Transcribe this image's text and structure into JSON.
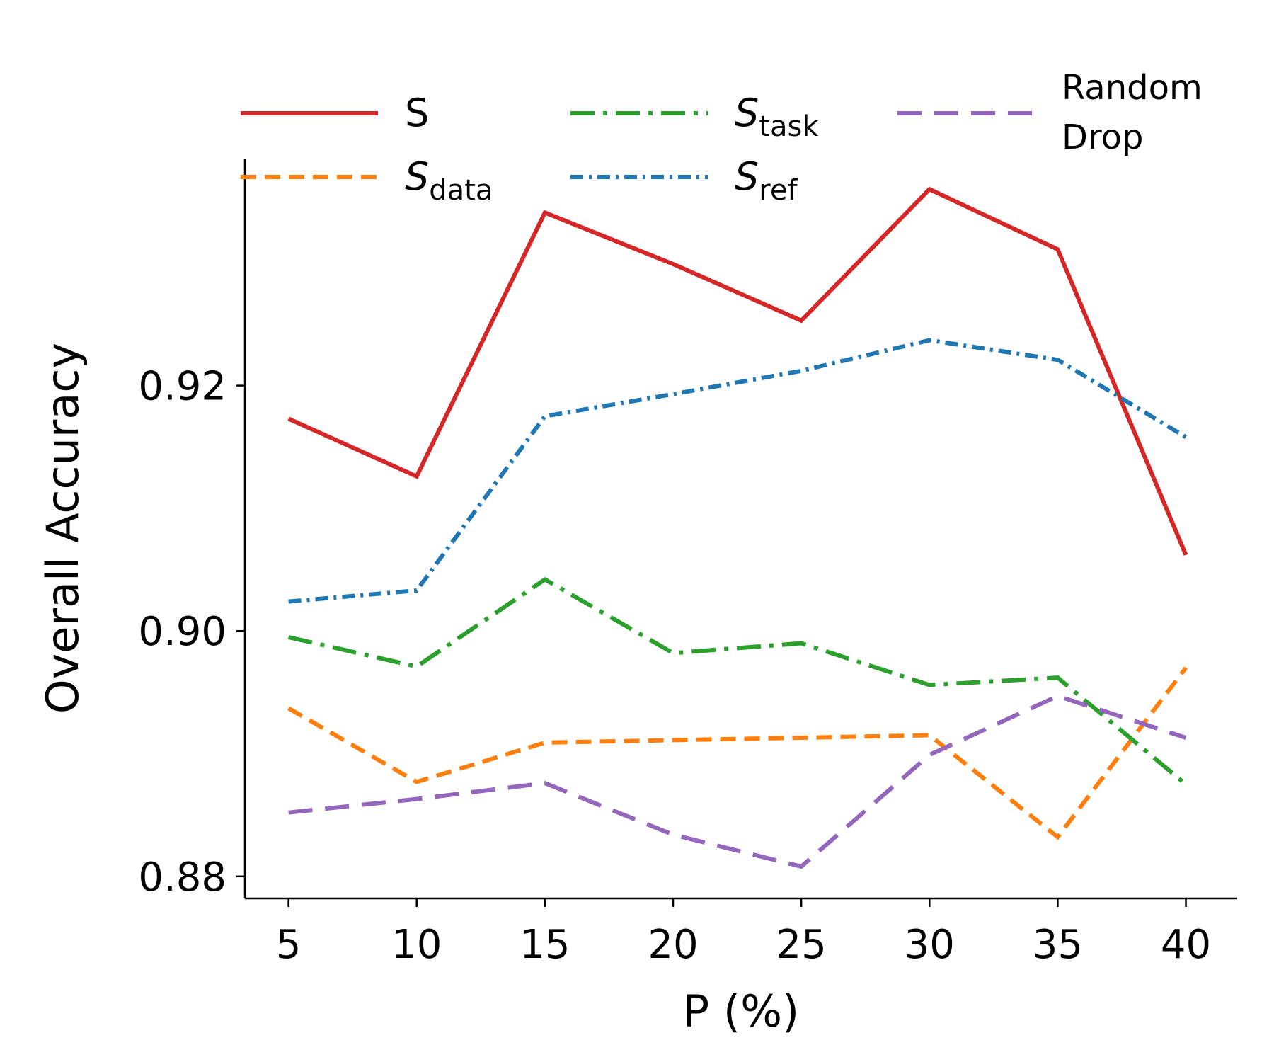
{
  "chart_data": {
    "type": "line",
    "xlabel": "P (%)",
    "ylabel": "Overall Accuracy",
    "x": [
      5,
      10,
      15,
      20,
      25,
      30,
      35,
      40
    ],
    "xticks": [
      "5",
      "10",
      "15",
      "20",
      "25",
      "30",
      "35",
      "40"
    ],
    "yticks": [
      "0.88",
      "0.90",
      "0.92"
    ],
    "ytick_values": [
      0.88,
      0.9,
      0.92
    ],
    "xlim": [
      3.3,
      42.0
    ],
    "ylim": [
      0.8782,
      0.9385
    ],
    "grid": false,
    "legend_position": "top",
    "series": [
      {
        "key": "s",
        "name": "S",
        "label_main": "S",
        "label_sub": "",
        "italic": false,
        "color": "#d62728",
        "dash": "solid",
        "values": [
          0.9173,
          0.9126,
          0.9341,
          0.9299,
          0.9253,
          0.936,
          0.9311,
          0.9062
        ]
      },
      {
        "key": "sdata",
        "name": "S_data",
        "label_main": "S",
        "label_sub": "data",
        "italic": true,
        "color": "#ff7f0e",
        "dash": "dashed",
        "values": [
          0.8937,
          0.8877,
          0.8909,
          0.8911,
          0.8913,
          0.8915,
          0.8832,
          0.897
        ]
      },
      {
        "key": "stask",
        "name": "S_task",
        "label_main": "S",
        "label_sub": "task",
        "italic": true,
        "color": "#2ca02c",
        "dash": "dashdot-long",
        "values": [
          0.8995,
          0.8971,
          0.9042,
          0.8982,
          0.899,
          0.8956,
          0.8962,
          0.8875
        ]
      },
      {
        "key": "sref",
        "name": "S_ref",
        "label_main": "S",
        "label_sub": "ref",
        "italic": true,
        "color": "#1f77b4",
        "dash": "dashdot",
        "values": [
          0.9024,
          0.9033,
          0.9175,
          0.9193,
          0.9212,
          0.9237,
          0.9221,
          0.9158
        ]
      },
      {
        "key": "random",
        "name": "Random Drop",
        "label_main": "Random",
        "label_line2": "Drop",
        "italic": false,
        "color": "#9467bd",
        "dash": "longdash",
        "values": [
          0.8852,
          0.8863,
          0.8876,
          0.8834,
          0.8808,
          0.8899,
          0.8947,
          0.8913
        ]
      }
    ]
  }
}
